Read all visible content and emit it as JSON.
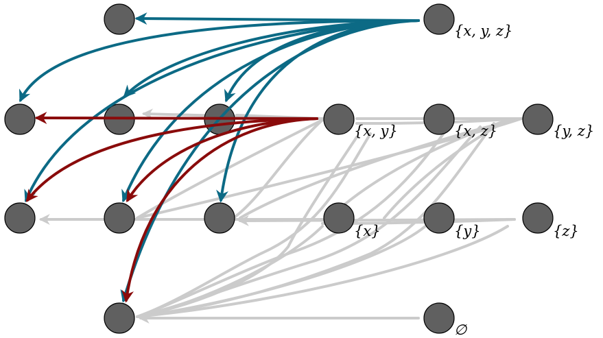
{
  "colors": {
    "node_fill": "#606060",
    "node_stroke": "#000000",
    "gray_edge": "#cbcbcb",
    "teal_edge": "#0c6a85",
    "red_edge": "#8a0b0b"
  },
  "labels": {
    "xyz": "{x, y, z}",
    "xy": "{x, y}",
    "xz": "{x, z}",
    "yz": "{y, z}",
    "x": "{x}",
    "y": "{y}",
    "z": "{z}",
    "empty": "∅"
  }
}
